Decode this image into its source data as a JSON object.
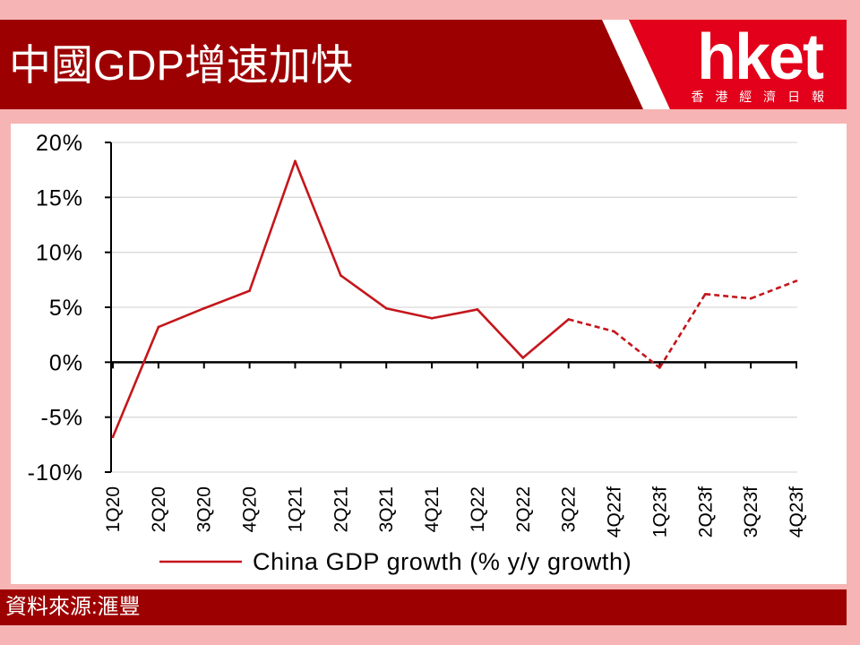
{
  "header": {
    "title": "中國GDP增速加快"
  },
  "logo": {
    "brand": "hket",
    "subtitle": "香 港 經 濟 日 報"
  },
  "footer": {
    "source": "資料來源:滙豐"
  },
  "colors": {
    "background": "#f7b4b4",
    "banner": "#9d0000",
    "logo_red": "#e2001a",
    "panel": "#ffffff",
    "series_line": "#c4161c",
    "gridline": "#d9d9d9",
    "axis": "#000000"
  },
  "chart_data": {
    "type": "line",
    "categories": [
      "1Q20",
      "2Q20",
      "3Q20",
      "4Q20",
      "1Q21",
      "2Q21",
      "3Q21",
      "4Q21",
      "1Q22",
      "2Q22",
      "3Q22",
      "4Q22f",
      "1Q23f",
      "2Q23f",
      "3Q23f",
      "4Q23f"
    ],
    "series": [
      {
        "name": "China GDP growth (% y/y growth)",
        "values": [
          -6.8,
          3.2,
          4.9,
          6.5,
          18.3,
          7.9,
          4.9,
          4.0,
          4.8,
          0.4,
          3.9,
          2.8,
          -0.5,
          6.2,
          5.8,
          7.4
        ],
        "forecast": [
          false,
          false,
          false,
          false,
          false,
          false,
          false,
          false,
          false,
          false,
          false,
          true,
          true,
          true,
          true,
          true
        ]
      }
    ],
    "yticks": [
      20,
      15,
      10,
      5,
      0,
      -5,
      -10
    ],
    "ytick_labels": [
      "20%",
      "15%",
      "10%",
      "5%",
      "0%",
      "-5%",
      "-10%"
    ],
    "ylim": [
      -10,
      20
    ],
    "grid": true,
    "legend": "bottom"
  }
}
